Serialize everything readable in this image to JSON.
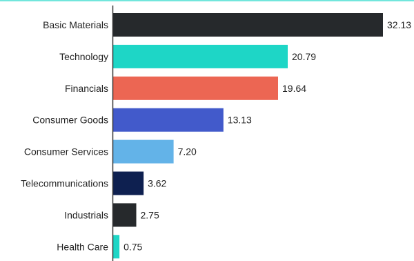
{
  "chart_data": {
    "type": "bar",
    "orientation": "horizontal",
    "title": "",
    "xlabel": "",
    "ylabel": "",
    "categories": [
      "Basic Materials",
      "Technology",
      "Financials",
      "Consumer Goods",
      "Consumer Services",
      "Telecommunications",
      "Industrials",
      "Health Care"
    ],
    "values": [
      32.13,
      20.79,
      19.64,
      13.13,
      7.2,
      3.62,
      2.75,
      0.75
    ],
    "value_labels": [
      "32.13",
      "20.79",
      "19.64",
      "13.13",
      "7.20",
      "3.62",
      "2.75",
      "0.75"
    ],
    "colors": [
      "#26292c",
      "#1ed6c6",
      "#ec6653",
      "#425acb",
      "#63b3e8",
      "#0e2050",
      "#26292c",
      "#1ed6c6"
    ],
    "xlim": [
      0,
      32.13
    ],
    "grid": false,
    "legend": "none",
    "accent_line_color": "#1ed6c6",
    "axis_color": "#333333"
  }
}
